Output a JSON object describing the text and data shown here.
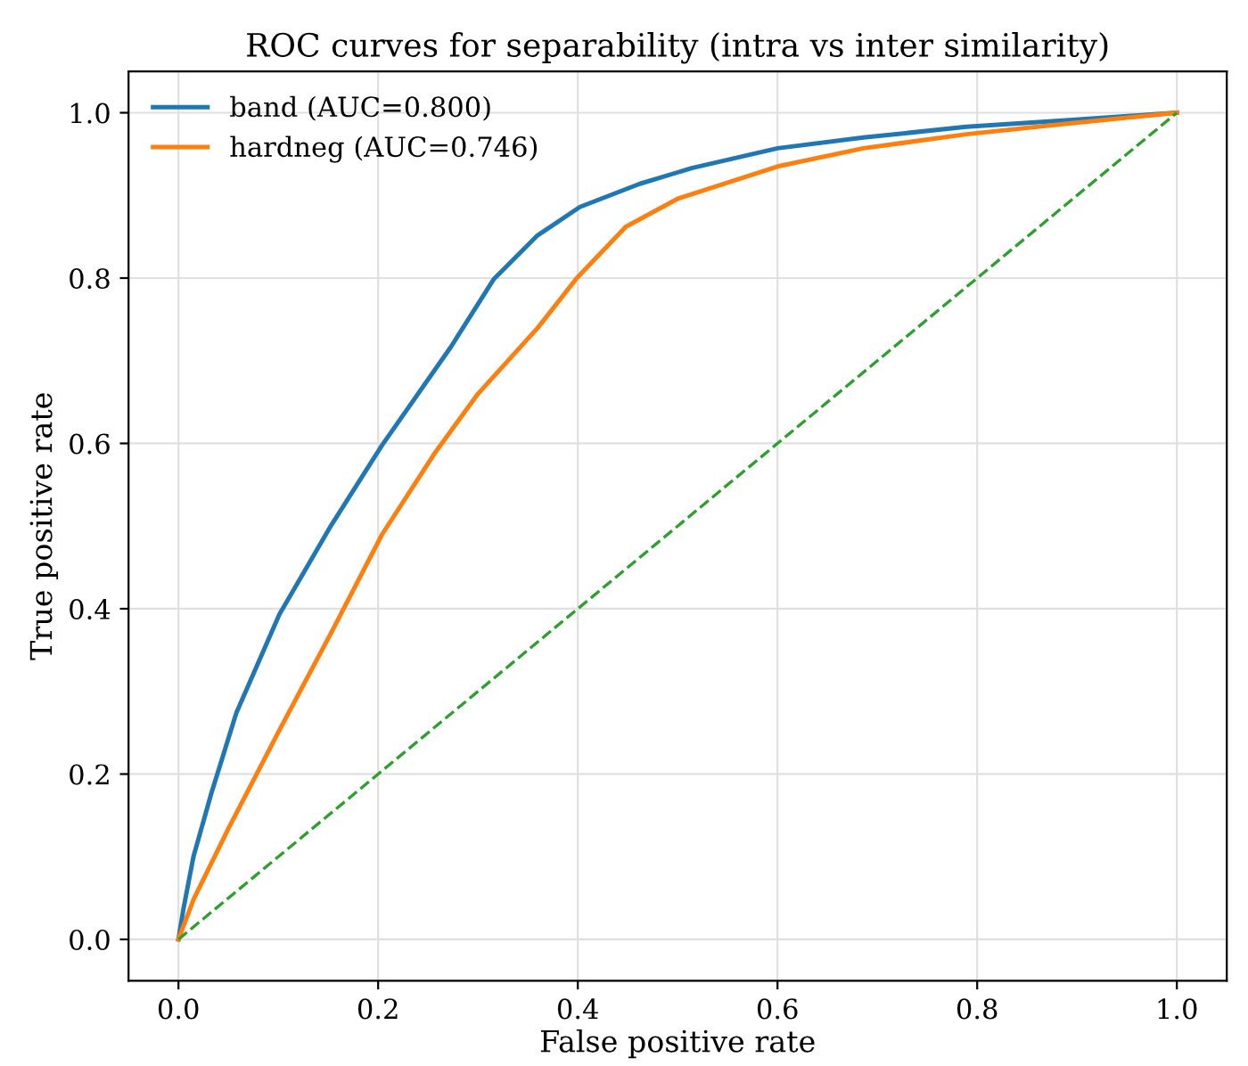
{
  "chart_data": {
    "type": "line",
    "title": "ROC curves for separability (intra vs inter similarity)",
    "xlabel": "False positive rate",
    "ylabel": "True positive rate",
    "xlim": [
      -0.05,
      1.05
    ],
    "ylim": [
      -0.05,
      1.05
    ],
    "xticks": [
      {
        "value": 0,
        "label": "0.0"
      },
      0.2,
      0.4,
      0.6,
      0.8,
      {
        "value": 1,
        "label": "1.0"
      }
    ],
    "yticks": [
      {
        "value": 0,
        "label": "0.0"
      },
      0.2,
      0.4,
      0.6,
      0.8,
      {
        "value": 1,
        "label": "1.0"
      }
    ],
    "grid": true,
    "legend": "top left",
    "series": [
      {
        "name": "band (AUC=0.800)",
        "color": "#1f77b4",
        "line_style": "solid",
        "x": [
          0,
          0.005,
          0.015,
          0.033,
          0.058,
          0.101,
          0.153,
          0.204,
          0.273,
          0.316,
          0.359,
          0.402,
          0.462,
          0.514,
          0.6,
          0.686,
          0.789,
          0.892,
          1
        ],
        "values": [
          0,
          0.037,
          0.1,
          0.177,
          0.274,
          0.393,
          0.501,
          0.598,
          0.717,
          0.799,
          0.851,
          0.886,
          0.914,
          0.933,
          0.957,
          0.97,
          0.983,
          0.991,
          1
        ]
      },
      {
        "name": "hardneg (AUC=0.746)",
        "color": "#ff7f0e",
        "line_style": "solid",
        "x": [
          0,
          0.015,
          0.05,
          0.101,
          0.153,
          0.204,
          0.256,
          0.3,
          0.36,
          0.399,
          0.448,
          0.5,
          0.6,
          0.686,
          0.789,
          0.892,
          1
        ],
        "values": [
          0,
          0.048,
          0.134,
          0.253,
          0.371,
          0.49,
          0.587,
          0.66,
          0.74,
          0.8,
          0.862,
          0.896,
          0.935,
          0.957,
          0.974,
          0.987,
          1
        ]
      },
      {
        "color": "#2ca02c",
        "line_style": "dashed",
        "x": [
          0,
          1
        ],
        "values": [
          0,
          1
        ]
      }
    ]
  }
}
